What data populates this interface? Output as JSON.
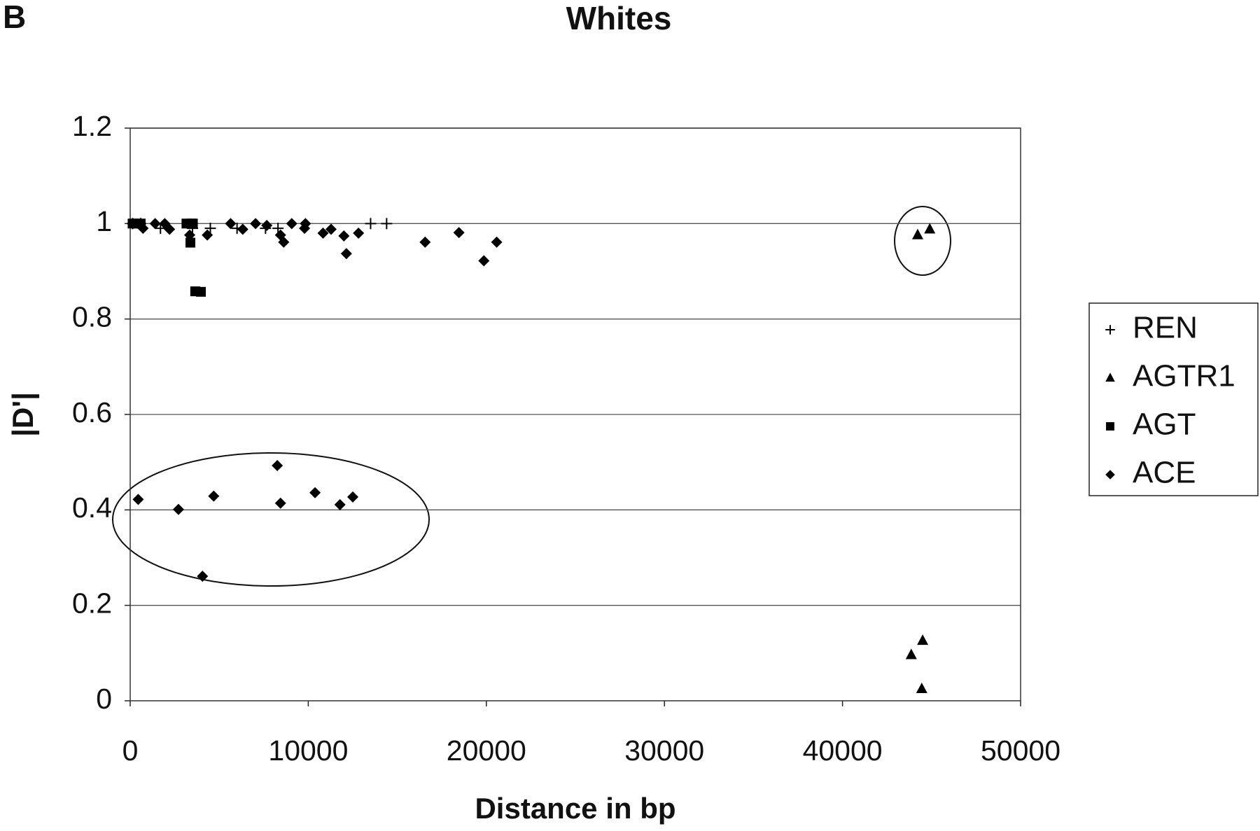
{
  "panel_label": "B",
  "chart_data": {
    "type": "scatter",
    "title": "Whites",
    "x_label": "Distance in bp",
    "y_label": "|D'|",
    "xlim": [
      0,
      50000
    ],
    "xticks": [
      0,
      10000,
      20000,
      30000,
      40000,
      50000
    ],
    "ylim": [
      0,
      1.2
    ],
    "yticks": [
      0,
      0.2,
      0.4,
      0.6,
      0.8,
      1,
      1.2
    ],
    "grid": true,
    "legend": "right",
    "series": [
      {
        "name": "REN",
        "color": "#000000",
        "marker": "plus",
        "x": [
          135,
          590,
          1700,
          3500,
          4500,
          6000,
          7600,
          8300,
          13500,
          14400
        ],
        "values": [
          1,
          1,
          0.99,
          0.99,
          0.99,
          0.99,
          0.99,
          0.99,
          1,
          1
        ]
      },
      {
        "name": "AGTR1",
        "color": "#000000",
        "marker": "triangle",
        "x": [
          44220,
          44900,
          43860,
          44500,
          44450
        ],
        "values": [
          0.976,
          0.988,
          0.096,
          0.126,
          0.025
        ]
      },
      {
        "name": "AGT",
        "color": "#000000",
        "marker": "square",
        "x": [
          135,
          360,
          590,
          3160,
          3380,
          3430,
          3520,
          3650,
          3970
        ],
        "values": [
          1,
          1,
          1,
          1,
          0.96,
          1,
          1,
          0.858,
          0.857
        ]
      },
      {
        "name": "ACE",
        "color": "#000000",
        "marker": "diamond",
        "x": [
          135,
          720,
          1400,
          1940,
          2210,
          3340,
          4330,
          5640,
          6320,
          7040,
          7670,
          8440,
          8620,
          9070,
          9790,
          9840,
          10830,
          11280,
          12000,
          12140,
          12820,
          16560,
          18460,
          19860,
          20580,
          450,
          2710,
          4690,
          4060,
          8260,
          8440,
          10380,
          11780,
          12500
        ],
        "values": [
          1,
          0.99,
          1,
          1,
          0.988,
          0.976,
          0.976,
          1,
          0.988,
          1,
          0.996,
          0.976,
          0.961,
          1,
          0.99,
          1,
          0.98,
          0.988,
          0.974,
          0.937,
          0.98,
          0.961,
          0.981,
          0.922,
          0.961,
          0.422,
          0.401,
          0.429,
          0.261,
          0.493,
          0.414,
          0.436,
          0.411,
          0.427
        ]
      }
    ]
  }
}
